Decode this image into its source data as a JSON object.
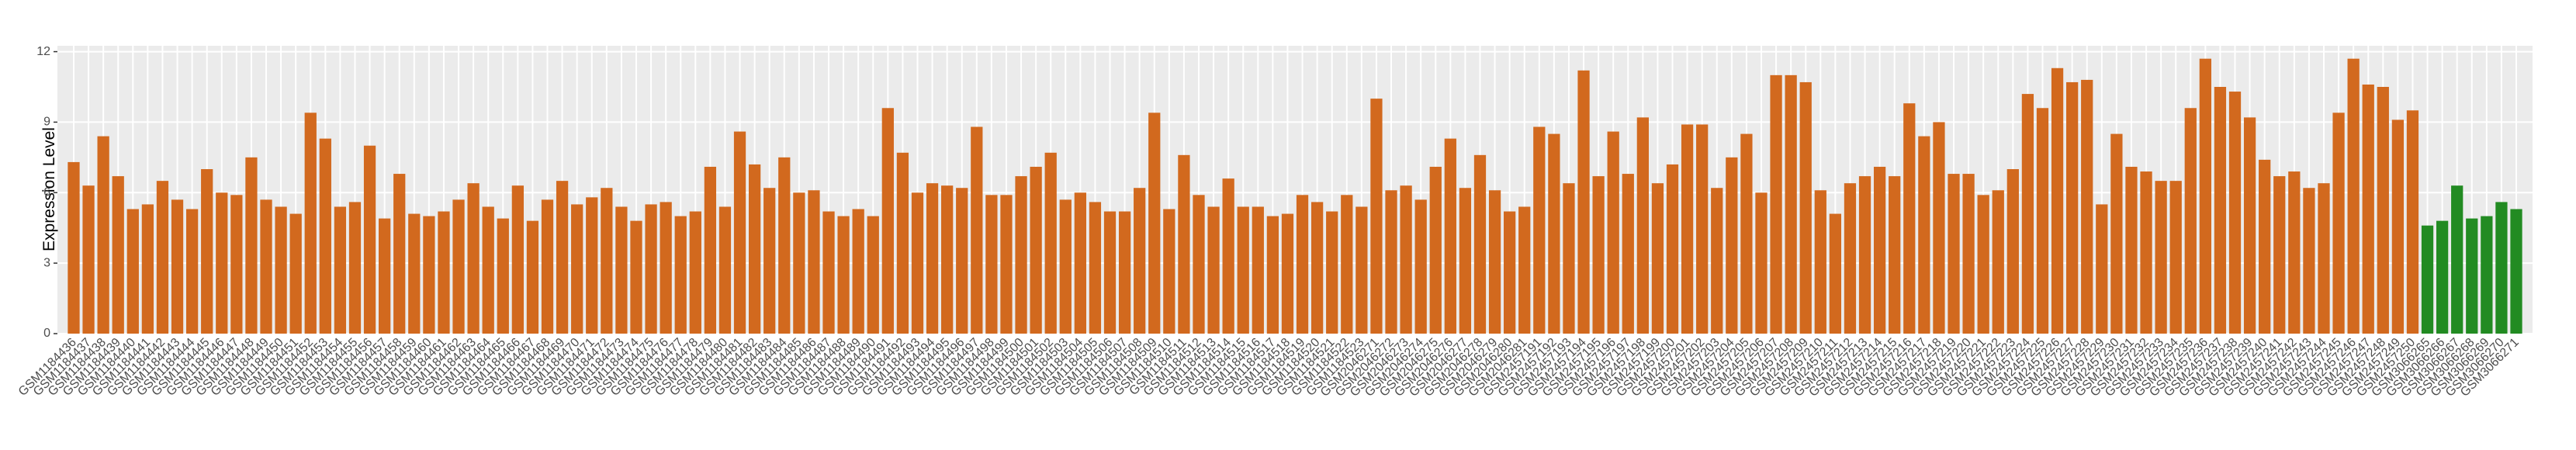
{
  "chart_data": {
    "type": "bar",
    "y_label": "Expression Level",
    "categories": [
      "GSM1184436",
      "GSM1184437",
      "GSM1184438",
      "GSM1184439",
      "GSM1184440",
      "GSM1184441",
      "GSM1184442",
      "GSM1184443",
      "GSM1184444",
      "GSM1184445",
      "GSM1184446",
      "GSM1184447",
      "GSM1184448",
      "GSM1184449",
      "GSM1184450",
      "GSM1184451",
      "GSM1184452",
      "GSM1184453",
      "GSM1184454",
      "GSM1184455",
      "GSM1184456",
      "GSM1184457",
      "GSM1184458",
      "GSM1184459",
      "GSM1184460",
      "GSM1184461",
      "GSM1184462",
      "GSM1184463",
      "GSM1184464",
      "GSM1184465",
      "GSM1184466",
      "GSM1184467",
      "GSM1184468",
      "GSM1184469",
      "GSM1184470",
      "GSM1184471",
      "GSM1184472",
      "GSM1184473",
      "GSM1184474",
      "GSM1184475",
      "GSM1184476",
      "GSM1184477",
      "GSM1184478",
      "GSM1184479",
      "GSM1184480",
      "GSM1184481",
      "GSM1184482",
      "GSM1184483",
      "GSM1184484",
      "GSM1184485",
      "GSM1184486",
      "GSM1184487",
      "GSM1184488",
      "GSM1184489",
      "GSM1184490",
      "GSM1184491",
      "GSM1184492",
      "GSM1184493",
      "GSM1184494",
      "GSM1184495",
      "GSM1184496",
      "GSM1184497",
      "GSM1184498",
      "GSM1184499",
      "GSM1184500",
      "GSM1184501",
      "GSM1184502",
      "GSM1184503",
      "GSM1184504",
      "GSM1184505",
      "GSM1184506",
      "GSM1184507",
      "GSM1184508",
      "GSM1184509",
      "GSM1184510",
      "GSM1184511",
      "GSM1184512",
      "GSM1184513",
      "GSM1184514",
      "GSM1184515",
      "GSM1184516",
      "GSM1184517",
      "GSM1184518",
      "GSM1184519",
      "GSM1184520",
      "GSM1184521",
      "GSM1184522",
      "GSM1184523",
      "GSM2046271",
      "GSM2046272",
      "GSM2046273",
      "GSM2046274",
      "GSM2046275",
      "GSM2046276",
      "GSM2046277",
      "GSM2046278",
      "GSM2046279",
      "GSM2046280",
      "GSM2046281",
      "GSM2457191",
      "GSM2457192",
      "GSM2457193",
      "GSM2457194",
      "GSM2457195",
      "GSM2457196",
      "GSM2457197",
      "GSM2457198",
      "GSM2457199",
      "GSM2457200",
      "GSM2457201",
      "GSM2457202",
      "GSM2457203",
      "GSM2457204",
      "GSM2457205",
      "GSM2457206",
      "GSM2457207",
      "GSM2457208",
      "GSM2457209",
      "GSM2457210",
      "GSM2457211",
      "GSM2457212",
      "GSM2457213",
      "GSM2457214",
      "GSM2457215",
      "GSM2457216",
      "GSM2457217",
      "GSM2457218",
      "GSM2457219",
      "GSM2457220",
      "GSM2457221",
      "GSM2457222",
      "GSM2457223",
      "GSM2457224",
      "GSM2457225",
      "GSM2457226",
      "GSM2457227",
      "GSM2457228",
      "GSM2457229",
      "GSM2457230",
      "GSM2457231",
      "GSM2457232",
      "GSM2457233",
      "GSM2457234",
      "GSM2457235",
      "GSM2457236",
      "GSM2457237",
      "GSM2457238",
      "GSM2457239",
      "GSM2457240",
      "GSM2457241",
      "GSM2457242",
      "GSM2457243",
      "GSM2457244",
      "GSM2457245",
      "GSM2457246",
      "GSM2457247",
      "GSM2457248",
      "GSM2457249",
      "GSM2457250",
      "GSM3066265",
      "GSM3066266",
      "GSM3066267",
      "GSM3066268",
      "GSM3066269",
      "GSM3066270",
      "GSM3066271"
    ],
    "values": [
      7.3,
      6.3,
      8.4,
      6.7,
      5.3,
      5.5,
      6.5,
      5.7,
      5.3,
      7.0,
      6.0,
      5.9,
      7.5,
      5.7,
      5.4,
      5.1,
      9.4,
      8.3,
      5.4,
      5.6,
      8.0,
      4.9,
      6.8,
      5.1,
      5.0,
      5.2,
      5.7,
      6.4,
      5.4,
      4.9,
      6.3,
      4.8,
      5.7,
      6.5,
      5.5,
      5.8,
      6.2,
      5.4,
      4.8,
      5.5,
      5.6,
      5.0,
      5.2,
      7.1,
      5.4,
      8.6,
      7.2,
      6.2,
      7.5,
      6.0,
      6.1,
      5.2,
      5.0,
      5.3,
      5.0,
      9.6,
      7.7,
      6.0,
      6.4,
      6.3,
      6.2,
      8.8,
      5.9,
      5.9,
      6.7,
      7.1,
      7.7,
      5.7,
      6.0,
      5.6,
      5.2,
      5.2,
      6.2,
      9.4,
      5.3,
      7.6,
      5.9,
      5.4,
      6.6,
      5.4,
      5.4,
      5.0,
      5.1,
      5.9,
      5.6,
      5.2,
      5.9,
      5.4,
      10.0,
      6.1,
      6.3,
      5.7,
      7.1,
      8.3,
      6.2,
      7.6,
      6.1,
      5.2,
      5.4,
      8.8,
      8.5,
      6.4,
      11.2,
      6.7,
      8.6,
      6.8,
      9.2,
      6.4,
      7.2,
      8.9,
      8.9,
      6.2,
      7.5,
      8.5,
      6.0,
      11.0,
      11.0,
      10.7,
      6.1,
      5.1,
      6.4,
      6.7,
      7.1,
      6.7,
      9.8,
      8.4,
      9.0,
      6.8,
      6.8,
      5.9,
      6.1,
      7.0,
      10.2,
      9.6,
      11.3,
      10.7,
      10.8,
      5.5,
      8.5,
      7.1,
      6.9,
      6.5,
      6.5,
      9.6,
      11.7,
      10.5,
      10.3,
      9.2,
      7.4,
      6.7,
      6.9,
      6.2,
      6.4,
      9.4,
      11.7,
      10.6,
      10.5,
      9.1,
      9.5,
      4.6,
      4.8,
      6.3,
      4.9,
      5.0,
      5.6,
      5.3
    ],
    "colors": [
      "#d2691e",
      "#d2691e",
      "#d2691e",
      "#d2691e",
      "#d2691e",
      "#d2691e",
      "#d2691e",
      "#d2691e",
      "#d2691e",
      "#d2691e",
      "#d2691e",
      "#d2691e",
      "#d2691e",
      "#d2691e",
      "#d2691e",
      "#d2691e",
      "#d2691e",
      "#d2691e",
      "#d2691e",
      "#d2691e",
      "#d2691e",
      "#d2691e",
      "#d2691e",
      "#d2691e",
      "#d2691e",
      "#d2691e",
      "#d2691e",
      "#d2691e",
      "#d2691e",
      "#d2691e",
      "#d2691e",
      "#d2691e",
      "#d2691e",
      "#d2691e",
      "#d2691e",
      "#d2691e",
      "#d2691e",
      "#d2691e",
      "#d2691e",
      "#d2691e",
      "#d2691e",
      "#d2691e",
      "#d2691e",
      "#d2691e",
      "#d2691e",
      "#d2691e",
      "#d2691e",
      "#d2691e",
      "#d2691e",
      "#d2691e",
      "#d2691e",
      "#d2691e",
      "#d2691e",
      "#d2691e",
      "#d2691e",
      "#d2691e",
      "#d2691e",
      "#d2691e",
      "#d2691e",
      "#d2691e",
      "#d2691e",
      "#d2691e",
      "#d2691e",
      "#d2691e",
      "#d2691e",
      "#d2691e",
      "#d2691e",
      "#d2691e",
      "#d2691e",
      "#d2691e",
      "#d2691e",
      "#d2691e",
      "#d2691e",
      "#d2691e",
      "#d2691e",
      "#d2691e",
      "#d2691e",
      "#d2691e",
      "#d2691e",
      "#d2691e",
      "#d2691e",
      "#d2691e",
      "#d2691e",
      "#d2691e",
      "#d2691e",
      "#d2691e",
      "#d2691e",
      "#d2691e",
      "#d2691e",
      "#d2691e",
      "#d2691e",
      "#d2691e",
      "#d2691e",
      "#d2691e",
      "#d2691e",
      "#d2691e",
      "#d2691e",
      "#d2691e",
      "#d2691e",
      "#d2691e",
      "#d2691e",
      "#d2691e",
      "#d2691e",
      "#d2691e",
      "#d2691e",
      "#d2691e",
      "#d2691e",
      "#d2691e",
      "#d2691e",
      "#d2691e",
      "#d2691e",
      "#d2691e",
      "#d2691e",
      "#d2691e",
      "#d2691e",
      "#d2691e",
      "#d2691e",
      "#d2691e",
      "#d2691e",
      "#d2691e",
      "#d2691e",
      "#d2691e",
      "#d2691e",
      "#d2691e",
      "#d2691e",
      "#d2691e",
      "#d2691e",
      "#d2691e",
      "#d2691e",
      "#d2691e",
      "#d2691e",
      "#d2691e",
      "#d2691e",
      "#d2691e",
      "#d2691e",
      "#d2691e",
      "#d2691e",
      "#d2691e",
      "#d2691e",
      "#d2691e",
      "#d2691e",
      "#d2691e",
      "#d2691e",
      "#d2691e",
      "#d2691e",
      "#d2691e",
      "#d2691e",
      "#d2691e",
      "#d2691e",
      "#d2691e",
      "#d2691e",
      "#d2691e",
      "#d2691e",
      "#d2691e",
      "#d2691e",
      "#d2691e",
      "#d2691e",
      "#d2691e",
      "#d2691e",
      "#228b22",
      "#228b22",
      "#228b22",
      "#228b22",
      "#228b22",
      "#228b22",
      "#228b22"
    ],
    "ylim": [
      0,
      12.25
    ],
    "yticks": [
      0,
      3,
      6,
      9,
      12
    ],
    "grid": true
  }
}
